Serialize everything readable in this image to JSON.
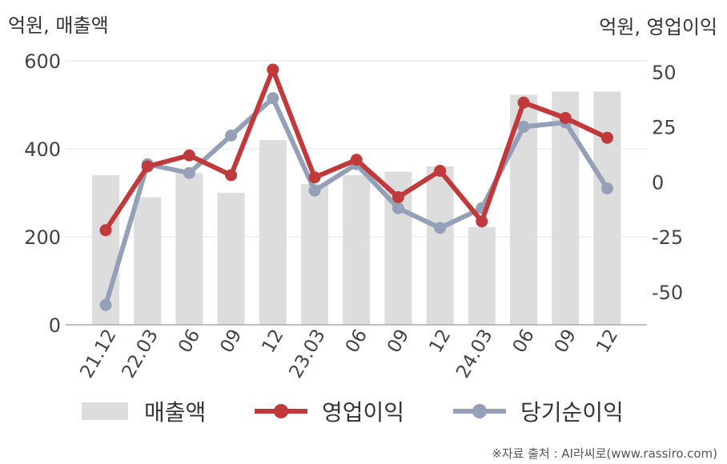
{
  "chart_data": {
    "type": "bar+line",
    "categories": [
      "21.12",
      "22.03",
      "06",
      "09",
      "12",
      "23.03",
      "06",
      "09",
      "12",
      "24.03",
      "06",
      "09",
      "12"
    ],
    "y_left": {
      "label": "억원, 매출액",
      "ticks": [
        0,
        200,
        400,
        600
      ],
      "lim": [
        0,
        600
      ]
    },
    "y_right": {
      "label": "억원, 영업이익",
      "ticks": [
        50,
        25,
        0,
        -25,
        -50
      ],
      "lim": [
        -65,
        55
      ]
    },
    "series": [
      {
        "name": "매출액",
        "type": "bar",
        "axis": "left",
        "color": "#dddddd",
        "values": [
          340,
          290,
          345,
          300,
          420,
          320,
          340,
          348,
          360,
          222,
          523,
          530,
          530
        ]
      },
      {
        "name": "영업이익",
        "type": "line",
        "axis": "right",
        "color": "#c0393b",
        "values": [
          -22,
          7,
          12,
          3,
          51,
          2,
          10,
          -7,
          5,
          -18,
          36,
          29,
          20
        ]
      },
      {
        "name": "당기순이익",
        "type": "line",
        "axis": "right",
        "color": "#94a0b8",
        "values": [
          -56,
          8,
          4,
          21,
          38,
          -4,
          8,
          -12,
          -21,
          -12,
          25,
          27,
          -3
        ]
      }
    ],
    "grid": true,
    "legend": "bottom"
  },
  "labels": {
    "unit_left": "억원, 매출액",
    "unit_right": "억원, 영업이익",
    "source": "※자료 출처 : AI라씨로(www.rassiro.com)"
  }
}
